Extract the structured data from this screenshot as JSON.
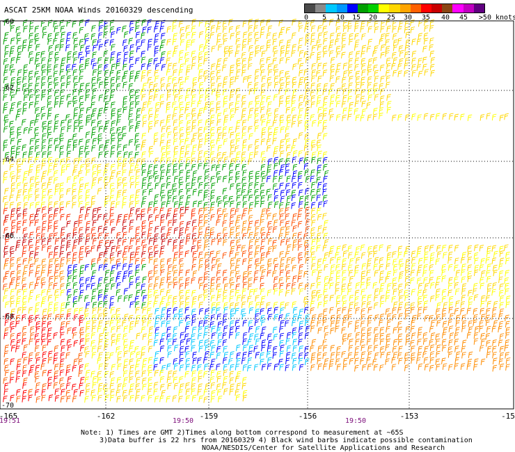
{
  "title": "ASCAT 25KM NOAA Winds 20160329 descending",
  "colorbar": {
    "colors": [
      "#4a4a4a",
      "#8a8a8a",
      "#00c8ff",
      "#0096ff",
      "#0000ff",
      "#00a000",
      "#00d000",
      "#ffff00",
      "#ffd700",
      "#ffa500",
      "#ff6000",
      "#ff0000",
      "#c80000",
      "#8b4513",
      "#ff00ff",
      "#c000c0",
      "#600080"
    ],
    "ticks": [
      "0",
      "5",
      "10",
      "15",
      "20",
      "25",
      "30",
      "35",
      "40",
      "45",
      ">50 knots"
    ]
  },
  "map": {
    "lon_labels": [
      "-165",
      "-162",
      "-159",
      "-156",
      "-153",
      "-15"
    ],
    "lat_labels": [
      "-60",
      "-62",
      "-64",
      "-66",
      "-68",
      "-70"
    ],
    "times": [
      "19:51",
      "19:50",
      "19:50"
    ]
  },
  "notes": {
    "line1": "Note: 1) Times are GMT 2)Times along bottom correspond to measurement at ~65S",
    "line2": "3)Data buffer is 22 hrs from 20160329 4) Black wind barbs indicate possible contamination",
    "line3": "NOAA/NESDIS/Center for Satellite Applications and Research"
  }
}
